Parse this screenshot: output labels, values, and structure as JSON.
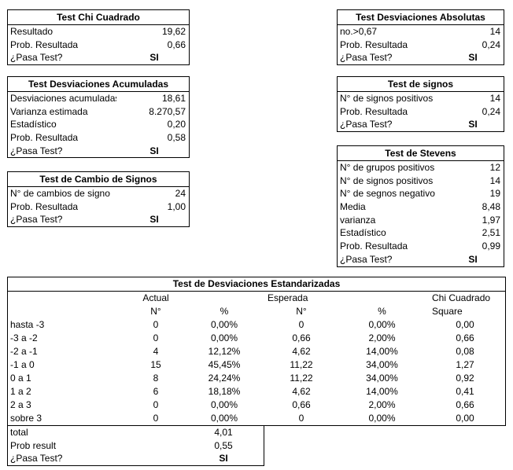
{
  "canvas": {
    "background": "#ffffff",
    "border_color": "#000000",
    "text_color": "#000000"
  },
  "tests": [
    {
      "key": "chi_cuadrado",
      "title": "Test Chi Cuadrado",
      "rows": [
        {
          "label": "Resultado",
          "value": "19,62",
          "type": "num"
        },
        {
          "label": "Prob. Resultada",
          "value": "0,66",
          "type": "num"
        },
        {
          "label": "¿Pasa Test?",
          "value": "SI",
          "type": "pass"
        }
      ]
    },
    {
      "key": "desviaciones_absolutas",
      "title": "Test Desviaciones Absolutas",
      "rows": [
        {
          "label": "no.>0,67",
          "value": "14",
          "type": "num"
        },
        {
          "label": "Prob. Resultada",
          "value": "0,24",
          "type": "num"
        },
        {
          "label": "¿Pasa Test?",
          "value": "SI",
          "type": "pass"
        }
      ]
    },
    {
      "key": "desviaciones_acumuladas",
      "title": "Test Desviaciones Acumuladas",
      "rows": [
        {
          "label": "Desviaciones acumuladas",
          "value": "18,61",
          "type": "num"
        },
        {
          "label": "Varianza estimada",
          "value": "8.270,57",
          "type": "num"
        },
        {
          "label": "Estadístico",
          "value": "0,20",
          "type": "num"
        },
        {
          "label": "Prob. Resultada",
          "value": "0,58",
          "type": "num"
        },
        {
          "label": "¿Pasa Test?",
          "value": "SI",
          "type": "pass"
        }
      ]
    },
    {
      "key": "signos",
      "title": "Test de signos",
      "rows": [
        {
          "label": "N° de signos positivos",
          "value": "14",
          "type": "num"
        },
        {
          "label": "Prob. Resultada",
          "value": "0,24",
          "type": "num"
        },
        {
          "label": "¿Pasa Test?",
          "value": "SI",
          "type": "pass"
        }
      ]
    },
    {
      "key": "cambio_signos",
      "title": "Test de Cambio de Signos",
      "rows": [
        {
          "label": "N° de cambios de signo",
          "value": "24",
          "type": "num"
        },
        {
          "label": "Prob. Resultada",
          "value": "1,00",
          "type": "num"
        },
        {
          "label": "¿Pasa Test?",
          "value": "SI",
          "type": "pass"
        }
      ]
    },
    {
      "key": "stevens",
      "title": "Test de Stevens",
      "rows": [
        {
          "label": "N° de grupos positivos",
          "value": "12",
          "type": "num"
        },
        {
          "label": "N° de signos positivos",
          "value": "14",
          "type": "num"
        },
        {
          "label": "N° de segnos negativo",
          "value": "19",
          "type": "num"
        },
        {
          "label": "Media",
          "value": "8,48",
          "type": "num"
        },
        {
          "label": "varianza",
          "value": "1,97",
          "type": "num"
        },
        {
          "label": "Estadístico",
          "value": "2,51",
          "type": "num"
        },
        {
          "label": "Prob. Resultada",
          "value": "0,99",
          "type": "num"
        },
        {
          "label": "¿Pasa Test?",
          "value": "SI",
          "type": "pass"
        }
      ]
    }
  ],
  "big_table": {
    "title": "Test de Desviaciones Estandarizadas",
    "group_headers": [
      "",
      "Actual",
      "",
      "Esperada",
      "",
      "Chi Cuadrado"
    ],
    "col_headers": [
      "",
      "N°",
      "%",
      "N°",
      "%",
      "Square"
    ],
    "rows": [
      [
        "hasta -3",
        "0",
        "0,00%",
        "0",
        "0,00%",
        "0,00"
      ],
      [
        "-3 a -2",
        "0",
        "0,00%",
        "0,66",
        "2,00%",
        "0,66"
      ],
      [
        "-2 a -1",
        "4",
        "12,12%",
        "4,62",
        "14,00%",
        "0,08"
      ],
      [
        "-1 a 0",
        "15",
        "45,45%",
        "11,22",
        "34,00%",
        "1,27"
      ],
      [
        "0 a 1",
        "8",
        "24,24%",
        "11,22",
        "34,00%",
        "0,92"
      ],
      [
        "1 a 2",
        "6",
        "18,18%",
        "4,62",
        "14,00%",
        "0,41"
      ],
      [
        "2 a 3",
        "0",
        "0,00%",
        "0,66",
        "2,00%",
        "0,66"
      ],
      [
        "sobre 3",
        "0",
        "0,00%",
        "0",
        "0,00%",
        "0,00"
      ]
    ],
    "summary": [
      {
        "label": "total",
        "value": "4,01",
        "type": "num"
      },
      {
        "label": "Prob result",
        "value": "0,55",
        "type": "num"
      },
      {
        "label": "¿Pasa Test?",
        "value": "SI",
        "type": "pass"
      }
    ]
  }
}
